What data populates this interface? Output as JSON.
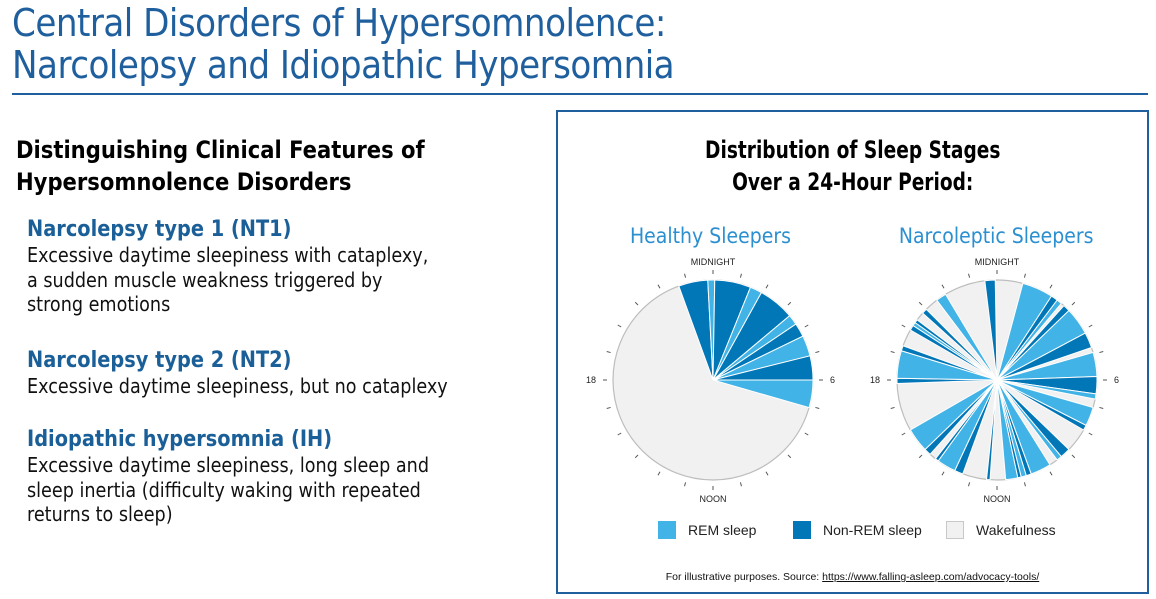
{
  "header": {
    "title_line1": "Central Disorders of Hypersomnolence:",
    "title_line2": "Narcolepsy and Idiopathic Hypersomnia"
  },
  "left": {
    "heading_line1": "Distinguishing Clinical Features of",
    "heading_line2": "Hypersomnolence Disorders",
    "items": [
      {
        "title": "Narcolepsy type 1 (NT1)",
        "lines": [
          "Excessive daytime sleepiness with cataplexy,",
          "a sudden muscle weakness triggered by",
          "strong emotions"
        ]
      },
      {
        "title": "Narcolepsy type 2 (NT2)",
        "lines": [
          "Excessive daytime sleepiness, but no cataplexy"
        ]
      },
      {
        "title": "Idiopathic hypersomnia (IH)",
        "lines": [
          "Excessive daytime sleepiness, long sleep and",
          "sleep inertia (difficulty waking with repeated",
          "returns to sleep)"
        ]
      }
    ]
  },
  "panel": {
    "title_line1": "Distribution of Sleep Stages",
    "title_line2": "Over a 24-Hour Period:",
    "source_prefix": "For illustrative purposes. Source: ",
    "source_link": "https://www.falling-asleep.com/advocacy-tools/"
  },
  "colors": {
    "rem": "#41b3e6",
    "nonrem": "#0277b8",
    "wake": "#f1f1f1",
    "brand": "#1f5f9e",
    "subtitle": "#2b8fd0"
  },
  "chart_data": [
    {
      "type": "pie",
      "title": "Healthy Sleepers",
      "clock_labels": {
        "top": "MIDNIGHT",
        "right": "6",
        "bottom": "NOON",
        "left": "18"
      },
      "ticks": 24,
      "legend": [
        "REM sleep",
        "Non-REM sleep",
        "Wakefulness"
      ],
      "segments_deg": [
        {
          "start": -20,
          "end": -3,
          "stage": "nonrem"
        },
        {
          "start": -3,
          "end": 1,
          "stage": "rem"
        },
        {
          "start": 1,
          "end": 22,
          "stage": "nonrem"
        },
        {
          "start": 22,
          "end": 29,
          "stage": "rem"
        },
        {
          "start": 29,
          "end": 50,
          "stage": "nonrem"
        },
        {
          "start": 50,
          "end": 56,
          "stage": "rem"
        },
        {
          "start": 56,
          "end": 64,
          "stage": "nonrem"
        },
        {
          "start": 64,
          "end": 76,
          "stage": "rem"
        },
        {
          "start": 76,
          "end": 90,
          "stage": "nonrem"
        },
        {
          "start": 90,
          "end": 106,
          "stage": "rem"
        },
        {
          "start": 106,
          "end": 340,
          "stage": "wake"
        }
      ]
    },
    {
      "type": "pie",
      "title": "Narcoleptic Sleepers",
      "clock_labels": {
        "top": "MIDNIGHT",
        "right": "6",
        "bottom": "NOON",
        "left": "18"
      },
      "ticks": 24,
      "legend": [
        "REM sleep",
        "Non-REM sleep",
        "Wakefulness"
      ],
      "segments_deg": [
        {
          "start": -7,
          "end": -1,
          "stage": "nonrem"
        },
        {
          "start": -1,
          "end": 15,
          "stage": "wake"
        },
        {
          "start": 15,
          "end": 33,
          "stage": "rem"
        },
        {
          "start": 33,
          "end": 37,
          "stage": "nonrem"
        },
        {
          "start": 37,
          "end": 40,
          "stage": "rem"
        },
        {
          "start": 40,
          "end": 42,
          "stage": "wake"
        },
        {
          "start": 42,
          "end": 46,
          "stage": "nonrem"
        },
        {
          "start": 46,
          "end": 62,
          "stage": "rem"
        },
        {
          "start": 62,
          "end": 71,
          "stage": "nonrem"
        },
        {
          "start": 71,
          "end": 74,
          "stage": "wake"
        },
        {
          "start": 74,
          "end": 88,
          "stage": "rem"
        },
        {
          "start": 88,
          "end": 98,
          "stage": "nonrem"
        },
        {
          "start": 98,
          "end": 101,
          "stage": "rem"
        },
        {
          "start": 101,
          "end": 106,
          "stage": "wake"
        },
        {
          "start": 106,
          "end": 117,
          "stage": "rem"
        },
        {
          "start": 117,
          "end": 120,
          "stage": "nonrem"
        },
        {
          "start": 120,
          "end": 134,
          "stage": "wake"
        },
        {
          "start": 134,
          "end": 140,
          "stage": "nonrem"
        },
        {
          "start": 140,
          "end": 143,
          "stage": "rem"
        },
        {
          "start": 143,
          "end": 148,
          "stage": "wake"
        },
        {
          "start": 148,
          "end": 160,
          "stage": "rem"
        },
        {
          "start": 160,
          "end": 163,
          "stage": "nonrem"
        },
        {
          "start": 163,
          "end": 166,
          "stage": "rem"
        },
        {
          "start": 166,
          "end": 168,
          "stage": "nonrem"
        },
        {
          "start": 168,
          "end": 175,
          "stage": "rem"
        },
        {
          "start": 175,
          "end": 184,
          "stage": "wake"
        },
        {
          "start": 184,
          "end": 186,
          "stage": "nonrem"
        },
        {
          "start": 186,
          "end": 200,
          "stage": "wake"
        },
        {
          "start": 200,
          "end": 205,
          "stage": "nonrem"
        },
        {
          "start": 205,
          "end": 216,
          "stage": "rem"
        },
        {
          "start": 216,
          "end": 218,
          "stage": "nonrem"
        },
        {
          "start": 218,
          "end": 222,
          "stage": "wake"
        },
        {
          "start": 222,
          "end": 226,
          "stage": "nonrem"
        },
        {
          "start": 226,
          "end": 240,
          "stage": "rem"
        },
        {
          "start": 240,
          "end": 268,
          "stage": "wake"
        },
        {
          "start": 268,
          "end": 271,
          "stage": "nonrem"
        },
        {
          "start": 271,
          "end": 287,
          "stage": "rem"
        },
        {
          "start": 287,
          "end": 290,
          "stage": "nonrem"
        },
        {
          "start": 290,
          "end": 300,
          "stage": "wake"
        },
        {
          "start": 300,
          "end": 303,
          "stage": "nonrem"
        },
        {
          "start": 303,
          "end": 305,
          "stage": "rem"
        },
        {
          "start": 305,
          "end": 307,
          "stage": "nonrem"
        },
        {
          "start": 307,
          "end": 312,
          "stage": "wake"
        },
        {
          "start": 312,
          "end": 315,
          "stage": "nonrem"
        },
        {
          "start": 315,
          "end": 323,
          "stage": "wake"
        },
        {
          "start": 323,
          "end": 329,
          "stage": "rem"
        },
        {
          "start": 329,
          "end": 338,
          "stage": "wake"
        },
        {
          "start": 338,
          "end": 343,
          "stage": "wake"
        }
      ]
    }
  ]
}
